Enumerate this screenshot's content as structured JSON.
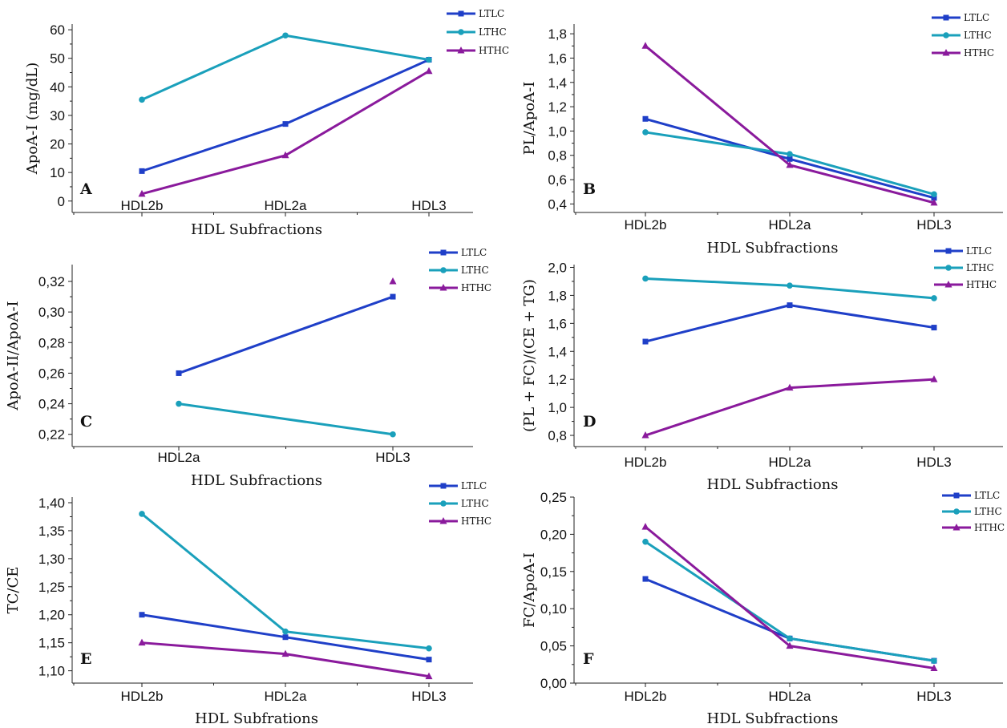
{
  "series_colors": {
    "LTLC": "#1f3fc8",
    "LTHC": "#1aa0bb",
    "HTHC": "#8a1a9c"
  },
  "chart_data": [
    {
      "id": "A",
      "type": "line",
      "panel_label": "A",
      "xlabel": "HDL Subfractions",
      "ylabel": "ApoA-I (mg/dL)",
      "categories": [
        "HDL2b",
        "HDL2a",
        "HDL3"
      ],
      "ylim": [
        -4,
        62
      ],
      "yticks": [
        0,
        10,
        20,
        30,
        40,
        50,
        60
      ],
      "ytick_labels": [
        "0",
        "10",
        "20",
        "30",
        "40",
        "50",
        "60"
      ],
      "legend_position": "top-right",
      "series": [
        {
          "name": "LTLC",
          "marker": "square",
          "values": [
            10.5,
            27,
            49.5
          ]
        },
        {
          "name": "LTHC",
          "marker": "circle",
          "values": [
            35.5,
            58,
            49.5
          ]
        },
        {
          "name": "HTHC",
          "marker": "triangle",
          "values": [
            2.5,
            16,
            45.5
          ]
        }
      ]
    },
    {
      "id": "B",
      "type": "line",
      "panel_label": "B",
      "xlabel": "HDL Subfractions",
      "ylabel": "PL/ApoA-I",
      "categories": [
        "HDL2b",
        "HDL2a",
        "HDL3"
      ],
      "ylim": [
        0.33,
        1.88
      ],
      "yticks": [
        0.4,
        0.6,
        0.8,
        1.0,
        1.2,
        1.4,
        1.6,
        1.8
      ],
      "ytick_labels": [
        "0,4",
        "0,6",
        "0,8",
        "1,0",
        "1,2",
        "1,4",
        "1,6",
        "1,8"
      ],
      "legend_position": "top-right",
      "series": [
        {
          "name": "LTLC",
          "marker": "square",
          "values": [
            1.1,
            0.77,
            0.45
          ]
        },
        {
          "name": "LTHC",
          "marker": "circle",
          "values": [
            0.99,
            0.81,
            0.48
          ]
        },
        {
          "name": "HTHC",
          "marker": "triangle",
          "values": [
            1.7,
            0.72,
            0.41
          ]
        }
      ]
    },
    {
      "id": "C",
      "type": "line",
      "panel_label": "C",
      "xlabel": "HDL Subfractions",
      "ylabel": "ApoA-II/ApoA-I",
      "categories": [
        "HDL2a",
        "HDL3"
      ],
      "ylim": [
        0.212,
        0.331
      ],
      "yticks": [
        0.22,
        0.24,
        0.26,
        0.28,
        0.3,
        0.32
      ],
      "ytick_labels": [
        "0,22",
        "0,24",
        "0,26",
        "0,28",
        "0,30",
        "0,32"
      ],
      "legend_position": "top-right",
      "series": [
        {
          "name": "LTLC",
          "marker": "square",
          "values": [
            0.26,
            0.31
          ]
        },
        {
          "name": "LTHC",
          "marker": "circle",
          "values": [
            0.24,
            0.22
          ]
        },
        {
          "name": "HTHC",
          "marker": "triangle",
          "values": [
            null,
            0.32
          ]
        }
      ]
    },
    {
      "id": "D",
      "type": "line",
      "panel_label": "D",
      "xlabel": "HDL Subfractions",
      "ylabel": "(PL + FC)/(CE + TG)",
      "categories": [
        "HDL2b",
        "HDL2a",
        "HDL3"
      ],
      "ylim": [
        0.72,
        2.02
      ],
      "yticks": [
        0.8,
        1.0,
        1.2,
        1.4,
        1.6,
        1.8,
        2.0
      ],
      "ytick_labels": [
        "0,8",
        "1,0",
        "1,2",
        "1,4",
        "1,6",
        "1,8",
        "2,0"
      ],
      "legend_position": "top-right",
      "series": [
        {
          "name": "LTLC",
          "marker": "square",
          "values": [
            1.47,
            1.73,
            1.57
          ]
        },
        {
          "name": "LTHC",
          "marker": "circle",
          "values": [
            1.92,
            1.87,
            1.78
          ]
        },
        {
          "name": "HTHC",
          "marker": "triangle",
          "values": [
            0.8,
            1.14,
            1.2
          ]
        }
      ]
    },
    {
      "id": "E",
      "type": "line",
      "panel_label": "E",
      "xlabel": "HDL Subfrations",
      "ylabel": "TC/CE",
      "categories": [
        "HDL2b",
        "HDL2a",
        "HDL3"
      ],
      "ylim": [
        1.078,
        1.41
      ],
      "yticks": [
        1.1,
        1.15,
        1.2,
        1.25,
        1.3,
        1.35,
        1.4
      ],
      "ytick_labels": [
        "1,10",
        "1,15",
        "1,20",
        "1,25",
        "1,30",
        "1,35",
        "1,40"
      ],
      "legend_position": "top-right",
      "series": [
        {
          "name": "LTLC",
          "marker": "square",
          "values": [
            1.2,
            1.16,
            1.12
          ]
        },
        {
          "name": "LTHC",
          "marker": "circle",
          "values": [
            1.38,
            1.17,
            1.14
          ]
        },
        {
          "name": "HTHC",
          "marker": "triangle",
          "values": [
            1.15,
            1.13,
            1.09
          ]
        }
      ]
    },
    {
      "id": "F",
      "type": "line",
      "panel_label": "F",
      "xlabel": "HDL Subfractions",
      "ylabel": "FC/ApoA-I",
      "categories": [
        "HDL2b",
        "HDL2a",
        "HDL3"
      ],
      "ylim": [
        0.0,
        0.25
      ],
      "yticks": [
        0.0,
        0.05,
        0.1,
        0.15,
        0.2,
        0.25
      ],
      "ytick_labels": [
        "0,00",
        "0,05",
        "0,10",
        "0,15",
        "0,20",
        "0,25"
      ],
      "legend_position": "top-right",
      "series": [
        {
          "name": "LTLC",
          "marker": "square",
          "values": [
            0.14,
            0.06,
            0.03
          ]
        },
        {
          "name": "LTHC",
          "marker": "circle",
          "values": [
            0.19,
            0.06,
            0.03
          ]
        },
        {
          "name": "HTHC",
          "marker": "triangle",
          "values": [
            0.21,
            0.05,
            0.02
          ]
        }
      ]
    }
  ]
}
